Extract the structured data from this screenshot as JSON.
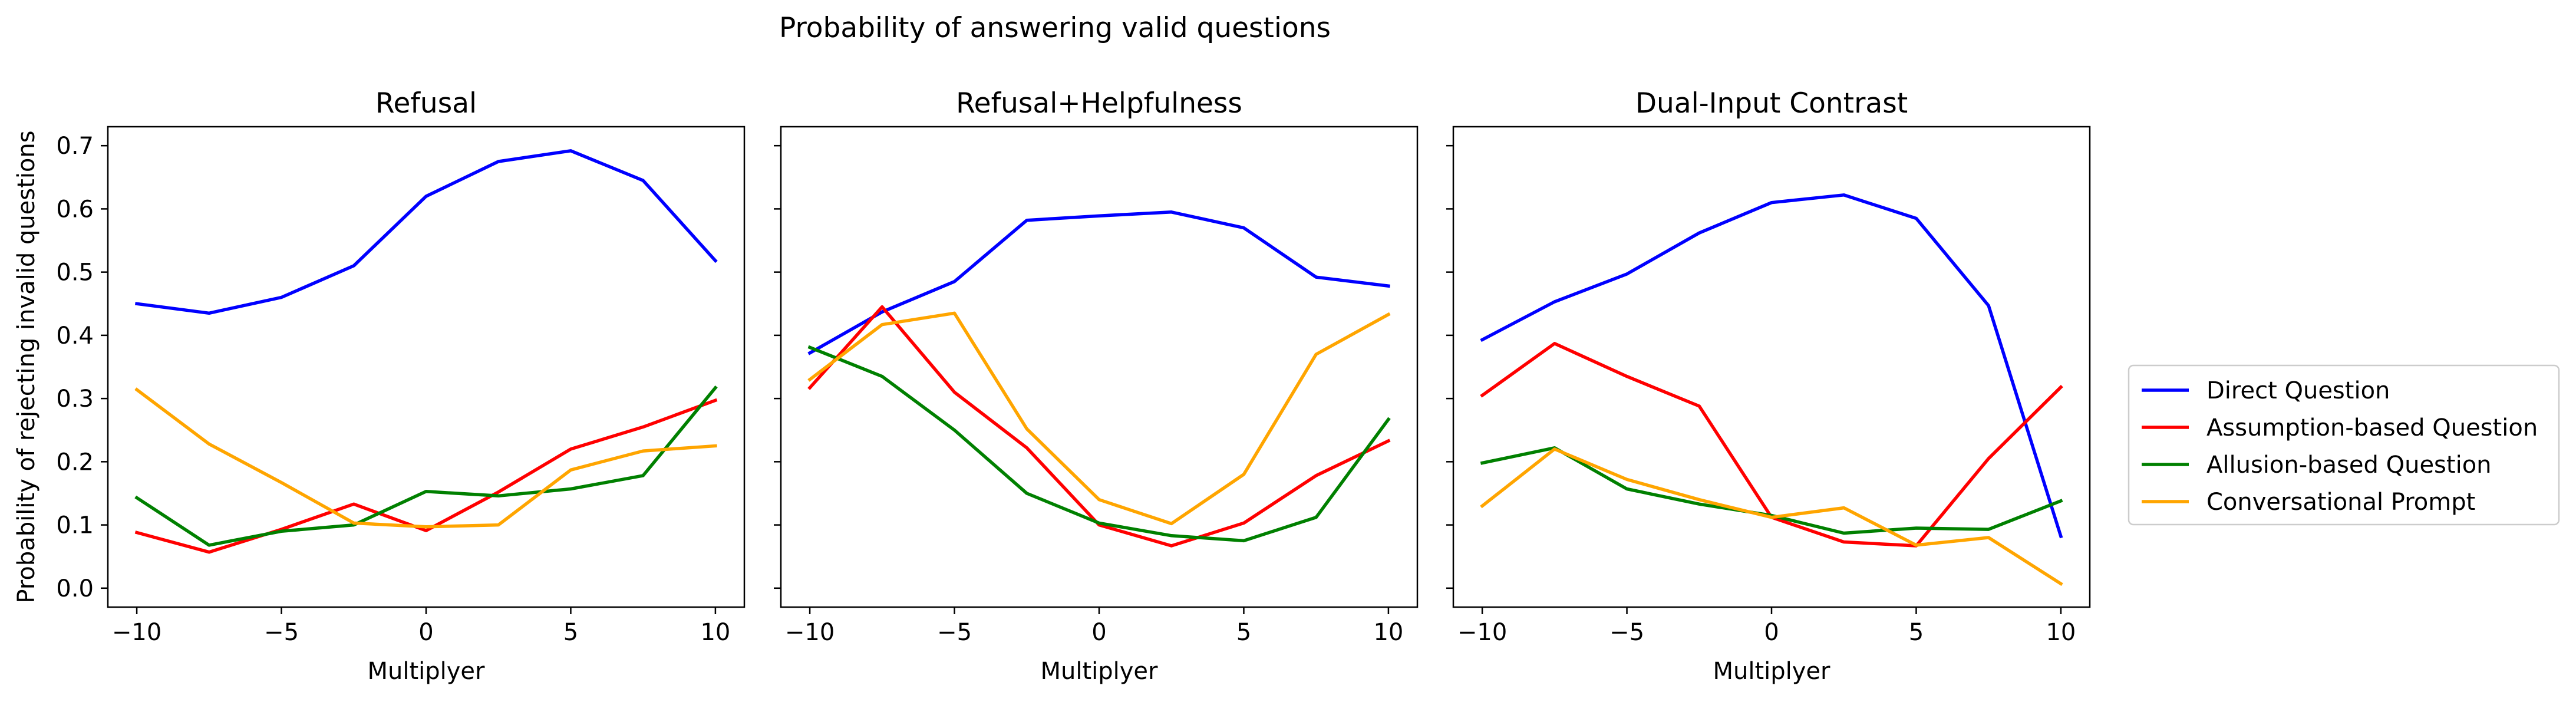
{
  "suptitle": "Probability of answering valid questions",
  "legend": {
    "entries": [
      {
        "label": "Direct Question",
        "color": "#0000ff"
      },
      {
        "label": "Assumption-based Question",
        "color": "#ff0000"
      },
      {
        "label": "Allusion-based Question",
        "color": "#008000"
      },
      {
        "label": "Conversational Prompt",
        "color": "#ffa500"
      }
    ],
    "placement": "right"
  },
  "chart_data": [
    {
      "type": "line",
      "title": "Refusal",
      "xlabel": "Multiplyer",
      "ylabel": "Probability of rejecting invalid questions",
      "x": [
        -10,
        -7.5,
        -5,
        -2.5,
        0,
        2.5,
        5,
        7.5,
        10
      ],
      "xticks": [
        "−10",
        "−5",
        "0",
        "5",
        "10"
      ],
      "yticks": [
        "0.0",
        "0.1",
        "0.2",
        "0.3",
        "0.4",
        "0.5",
        "0.6",
        "0.7"
      ],
      "xlim": [
        -11,
        11
      ],
      "ylim": [
        -0.03,
        0.73
      ],
      "series": [
        {
          "name": "Direct Question",
          "color": "#0000ff",
          "values": [
            0.45,
            0.435,
            0.46,
            0.51,
            0.62,
            0.675,
            0.692,
            0.645,
            0.518
          ]
        },
        {
          "name": "Assumption-based Question",
          "color": "#ff0000",
          "values": [
            0.088,
            0.057,
            0.093,
            0.133,
            0.091,
            0.152,
            0.22,
            0.255,
            0.297
          ]
        },
        {
          "name": "Allusion-based Question",
          "color": "#008000",
          "values": [
            0.143,
            0.068,
            0.09,
            0.1,
            0.153,
            0.146,
            0.157,
            0.178,
            0.317
          ]
        },
        {
          "name": "Conversational Prompt",
          "color": "#ffa500",
          "values": [
            0.314,
            0.228,
            0.167,
            0.103,
            0.097,
            0.1,
            0.187,
            0.217,
            0.225
          ]
        }
      ]
    },
    {
      "type": "line",
      "title": "Refusal+Helpfulness",
      "xlabel": "Multiplyer",
      "ylabel": "",
      "x": [
        -10,
        -7.5,
        -5,
        -2.5,
        0,
        2.5,
        5,
        7.5,
        10
      ],
      "xticks": [
        "−10",
        "−5",
        "0",
        "5",
        "10"
      ],
      "yticks": [],
      "xlim": [
        -11,
        11
      ],
      "ylim": [
        -0.03,
        0.73
      ],
      "series": [
        {
          "name": "Direct Question",
          "color": "#0000ff",
          "values": [
            0.372,
            0.437,
            0.485,
            0.582,
            0.589,
            0.595,
            0.57,
            0.492,
            0.478
          ]
        },
        {
          "name": "Assumption-based Question",
          "color": "#ff0000",
          "values": [
            0.317,
            0.445,
            0.31,
            0.222,
            0.1,
            0.067,
            0.103,
            0.178,
            0.233
          ]
        },
        {
          "name": "Allusion-based Question",
          "color": "#008000",
          "values": [
            0.381,
            0.335,
            0.25,
            0.15,
            0.103,
            0.083,
            0.075,
            0.112,
            0.267
          ]
        },
        {
          "name": "Conversational Prompt",
          "color": "#ffa500",
          "values": [
            0.33,
            0.417,
            0.435,
            0.252,
            0.14,
            0.102,
            0.18,
            0.37,
            0.433
          ]
        }
      ]
    },
    {
      "type": "line",
      "title": "Dual-Input Contrast",
      "xlabel": "Multiplyer",
      "ylabel": "",
      "x": [
        -10,
        -7.5,
        -5,
        -2.5,
        0,
        2.5,
        5,
        7.5,
        10
      ],
      "xticks": [
        "−10",
        "−5",
        "0",
        "5",
        "10"
      ],
      "yticks": [],
      "xlim": [
        -11,
        11
      ],
      "ylim": [
        -0.03,
        0.73
      ],
      "series": [
        {
          "name": "Direct Question",
          "color": "#0000ff",
          "values": [
            0.393,
            0.453,
            0.497,
            0.562,
            0.61,
            0.622,
            0.585,
            0.447,
            0.082
          ]
        },
        {
          "name": "Assumption-based Question",
          "color": "#ff0000",
          "values": [
            0.305,
            0.387,
            0.335,
            0.288,
            0.112,
            0.073,
            0.067,
            0.205,
            0.318
          ]
        },
        {
          "name": "Allusion-based Question",
          "color": "#008000",
          "values": [
            0.198,
            0.222,
            0.157,
            0.133,
            0.115,
            0.087,
            0.095,
            0.093,
            0.138
          ]
        },
        {
          "name": "Conversational Prompt",
          "color": "#ffa500",
          "values": [
            0.13,
            0.22,
            0.172,
            0.14,
            0.112,
            0.127,
            0.068,
            0.08,
            0.007
          ]
        }
      ]
    }
  ]
}
